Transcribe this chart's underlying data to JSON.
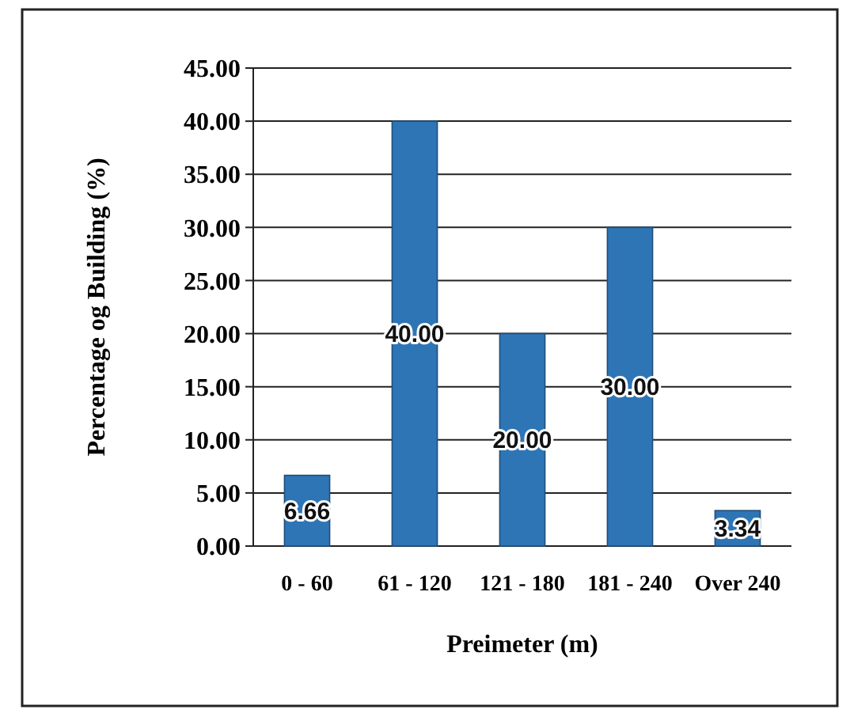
{
  "chart_data": {
    "type": "bar",
    "xlabel": "Preimeter (m)",
    "ylabel": "Percentage og Building (%)",
    "categories": [
      "0 - 60",
      "61 - 120",
      "121 - 180",
      "181 - 240",
      "Over 240"
    ],
    "values": [
      6.66,
      40,
      20,
      30,
      3.34
    ],
    "value_labels": [
      "6.66",
      "40.00",
      "20.00",
      "30.00",
      "3.34"
    ],
    "color": "#2e75b6",
    "ylim": [
      0,
      45
    ],
    "yticks": [
      {
        "value": 0,
        "label": "0.00"
      },
      {
        "value": 5,
        "label": "5.00"
      },
      {
        "value": 10,
        "label": "10.00"
      },
      {
        "value": 15,
        "label": "15.00"
      },
      {
        "value": 20,
        "label": "20.00"
      },
      {
        "value": 25,
        "label": "25.00"
      },
      {
        "value": 30,
        "label": "30.00"
      },
      {
        "value": 35,
        "label": "35.00"
      },
      {
        "value": 40,
        "label": "40.00"
      },
      {
        "value": 45,
        "label": "45.00"
      }
    ],
    "grid": "y"
  }
}
